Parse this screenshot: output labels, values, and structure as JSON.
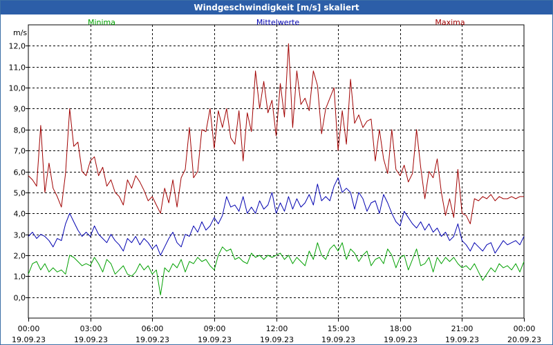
{
  "window": {
    "title": "Windgeschwindigkeit [m/s] skaliert"
  },
  "chart_data": {
    "type": "line",
    "title": "Windgeschwindigkeit [m/s] skaliert",
    "ylabel": "m/s",
    "xlabel": "",
    "ylim": [
      -1,
      13
    ],
    "yticks": [
      0,
      1,
      2,
      3,
      4,
      5,
      6,
      7,
      8,
      9,
      10,
      11,
      12
    ],
    "ytick_labels": [
      "0,0",
      "1,0",
      "2,0",
      "3,0",
      "4,0",
      "5,0",
      "6,0",
      "7,0",
      "8,0",
      "9,0",
      "10,0",
      "11,0",
      "12,0"
    ],
    "xlim": [
      0,
      24
    ],
    "xticks": [
      0,
      3,
      6,
      9,
      12,
      15,
      18,
      21,
      24
    ],
    "xtick_labels": [
      {
        "time": "00:00",
        "date": "19.09.23"
      },
      {
        "time": "03:00",
        "date": "19.09.23"
      },
      {
        "time": "06:00",
        "date": "19.09.23"
      },
      {
        "time": "09:00",
        "date": "19.09.23"
      },
      {
        "time": "12:00",
        "date": "19.09.23"
      },
      {
        "time": "15:00",
        "date": "19.09.23"
      },
      {
        "time": "18:00",
        "date": "19.09.23"
      },
      {
        "time": "21:00",
        "date": "19.09.23"
      },
      {
        "time": "00:00",
        "date": "20.09.23"
      }
    ],
    "grid": true,
    "legend_position": "top",
    "series": [
      {
        "name": "Minima",
        "color": "#00a000",
        "x": [
          0,
          0.2,
          0.4,
          0.6,
          0.8,
          1.0,
          1.2,
          1.4,
          1.6,
          1.8,
          2.0,
          2.2,
          2.4,
          2.6,
          2.8,
          3.0,
          3.2,
          3.4,
          3.6,
          3.8,
          4.0,
          4.2,
          4.4,
          4.6,
          4.8,
          5.0,
          5.2,
          5.4,
          5.6,
          5.8,
          6.0,
          6.2,
          6.4,
          6.6,
          6.8,
          7.0,
          7.2,
          7.4,
          7.6,
          7.8,
          8.0,
          8.2,
          8.4,
          8.6,
          8.8,
          9.0,
          9.2,
          9.4,
          9.6,
          9.8,
          10.0,
          10.2,
          10.4,
          10.6,
          10.8,
          11.0,
          11.2,
          11.4,
          11.6,
          11.8,
          12.0,
          12.2,
          12.4,
          12.6,
          12.8,
          13.0,
          13.2,
          13.4,
          13.6,
          13.8,
          14.0,
          14.2,
          14.4,
          14.6,
          14.8,
          15.0,
          15.2,
          15.4,
          15.6,
          15.8,
          16.0,
          16.2,
          16.4,
          16.6,
          16.8,
          17.0,
          17.2,
          17.4,
          17.6,
          17.8,
          18.0,
          18.2,
          18.4,
          18.6,
          18.8,
          19.0,
          19.2,
          19.4,
          19.6,
          19.8,
          20.0,
          20.2,
          20.4,
          20.6,
          20.8,
          21.0,
          21.2,
          21.4,
          21.6,
          21.8,
          22.0,
          22.2,
          22.4,
          22.6,
          22.8,
          23.0,
          23.2,
          23.4,
          23.6,
          23.8,
          24.0
        ],
        "values": [
          1.1,
          1.6,
          1.7,
          1.3,
          1.6,
          1.2,
          1.4,
          1.2,
          1.3,
          1.1,
          2.0,
          1.9,
          1.7,
          1.5,
          1.6,
          1.5,
          1.9,
          1.6,
          1.2,
          1.8,
          1.6,
          1.1,
          1.3,
          1.5,
          1.1,
          1.0,
          1.2,
          1.6,
          1.3,
          1.5,
          1.1,
          1.3,
          0.1,
          1.4,
          1.2,
          1.6,
          1.4,
          1.8,
          1.2,
          1.7,
          1.6,
          1.9,
          1.7,
          1.8,
          1.5,
          1.3,
          2.0,
          2.4,
          2.2,
          2.3,
          1.8,
          1.9,
          1.7,
          1.6,
          2.1,
          1.9,
          2.0,
          1.8,
          2.0,
          1.9,
          2.0,
          2.1,
          1.8,
          2.0,
          1.6,
          1.9,
          1.7,
          1.5,
          2.2,
          1.8,
          2.6,
          2.0,
          1.8,
          2.3,
          2.5,
          2.2,
          2.6,
          1.8,
          2.3,
          2.1,
          1.7,
          2.0,
          2.2,
          1.5,
          1.8,
          1.9,
          1.6,
          2.3,
          2.0,
          1.4,
          1.9,
          2.0,
          1.3,
          1.8,
          2.3,
          1.5,
          1.6,
          1.9,
          1.2,
          1.9,
          1.6,
          1.9,
          1.7,
          1.9,
          1.6,
          1.4,
          1.5,
          1.3,
          1.6,
          1.2,
          0.8,
          1.1,
          1.4,
          1.2,
          1.6,
          1.4,
          1.5,
          1.3,
          1.6,
          1.2,
          1.7
        ]
      },
      {
        "name": "Mittelwerte",
        "color": "#0000b0",
        "x": [
          0,
          0.2,
          0.4,
          0.6,
          0.8,
          1.0,
          1.2,
          1.4,
          1.6,
          1.8,
          2.0,
          2.2,
          2.4,
          2.6,
          2.8,
          3.0,
          3.2,
          3.4,
          3.6,
          3.8,
          4.0,
          4.2,
          4.4,
          4.6,
          4.8,
          5.0,
          5.2,
          5.4,
          5.6,
          5.8,
          6.0,
          6.2,
          6.4,
          6.6,
          6.8,
          7.0,
          7.2,
          7.4,
          7.6,
          7.8,
          8.0,
          8.2,
          8.4,
          8.6,
          8.8,
          9.0,
          9.2,
          9.4,
          9.6,
          9.8,
          10.0,
          10.2,
          10.4,
          10.6,
          10.8,
          11.0,
          11.2,
          11.4,
          11.6,
          11.8,
          12.0,
          12.2,
          12.4,
          12.6,
          12.8,
          13.0,
          13.2,
          13.4,
          13.6,
          13.8,
          14.0,
          14.2,
          14.4,
          14.6,
          14.8,
          15.0,
          15.2,
          15.4,
          15.6,
          15.8,
          16.0,
          16.2,
          16.4,
          16.6,
          16.8,
          17.0,
          17.2,
          17.4,
          17.6,
          17.8,
          18.0,
          18.2,
          18.4,
          18.6,
          18.8,
          19.0,
          19.2,
          19.4,
          19.6,
          19.8,
          20.0,
          20.2,
          20.4,
          20.6,
          20.8,
          21.0,
          21.2,
          21.4,
          21.6,
          21.8,
          22.0,
          22.2,
          22.4,
          22.6,
          22.8,
          23.0,
          23.2,
          23.4,
          23.6,
          23.8,
          24.0
        ],
        "values": [
          2.9,
          3.1,
          2.8,
          3.0,
          2.9,
          2.7,
          2.4,
          2.8,
          2.7,
          3.5,
          4.0,
          3.6,
          3.2,
          2.9,
          3.1,
          2.9,
          3.4,
          3.0,
          2.8,
          2.6,
          3.0,
          2.7,
          2.5,
          2.2,
          2.8,
          2.6,
          2.9,
          2.5,
          2.8,
          2.6,
          2.3,
          2.5,
          2.0,
          2.4,
          2.8,
          3.1,
          2.6,
          2.4,
          3.0,
          2.9,
          3.4,
          3.1,
          3.6,
          3.2,
          3.4,
          3.8,
          3.5,
          3.9,
          4.8,
          4.3,
          4.4,
          4.1,
          4.8,
          4.0,
          4.3,
          4.0,
          4.6,
          4.2,
          4.4,
          5.0,
          4.0,
          4.5,
          4.1,
          4.8,
          4.2,
          4.7,
          4.3,
          4.5,
          4.9,
          4.4,
          5.4,
          4.6,
          4.8,
          4.6,
          5.3,
          5.7,
          5.0,
          5.2,
          5.0,
          4.2,
          5.0,
          4.7,
          4.1,
          4.5,
          4.6,
          4.0,
          4.9,
          4.5,
          4.0,
          3.6,
          3.4,
          4.1,
          3.8,
          3.5,
          3.3,
          3.6,
          3.2,
          3.5,
          3.1,
          3.3,
          2.9,
          3.1,
          2.7,
          2.9,
          3.5,
          2.7,
          2.5,
          2.2,
          2.6,
          2.4,
          2.2,
          2.5,
          2.6,
          2.1,
          2.4,
          2.7,
          2.5,
          2.6,
          2.7,
          2.5,
          2.9
        ]
      },
      {
        "name": "Maxima",
        "color": "#a00000",
        "x": [
          0,
          0.2,
          0.4,
          0.6,
          0.8,
          1.0,
          1.2,
          1.4,
          1.6,
          1.8,
          2.0,
          2.2,
          2.4,
          2.6,
          2.8,
          3.0,
          3.2,
          3.4,
          3.6,
          3.8,
          4.0,
          4.2,
          4.4,
          4.6,
          4.8,
          5.0,
          5.2,
          5.4,
          5.6,
          5.8,
          6.0,
          6.2,
          6.4,
          6.6,
          6.8,
          7.0,
          7.2,
          7.4,
          7.6,
          7.8,
          8.0,
          8.2,
          8.4,
          8.6,
          8.8,
          9.0,
          9.2,
          9.4,
          9.6,
          9.8,
          10.0,
          10.2,
          10.4,
          10.6,
          10.8,
          11.0,
          11.2,
          11.4,
          11.6,
          11.8,
          12.0,
          12.2,
          12.4,
          12.6,
          12.8,
          13.0,
          13.2,
          13.4,
          13.6,
          13.8,
          14.0,
          14.2,
          14.4,
          14.6,
          14.8,
          15.0,
          15.2,
          15.4,
          15.6,
          15.8,
          16.0,
          16.2,
          16.4,
          16.6,
          16.8,
          17.0,
          17.2,
          17.4,
          17.6,
          17.8,
          18.0,
          18.2,
          18.4,
          18.6,
          18.8,
          19.0,
          19.2,
          19.4,
          19.6,
          19.8,
          20.0,
          20.2,
          20.4,
          20.6,
          20.8,
          21.0,
          21.2,
          21.4,
          21.6,
          21.8,
          22.0,
          22.2,
          22.4,
          22.6,
          22.8,
          23.0,
          23.2,
          23.4,
          23.6,
          23.8,
          24.0
        ],
        "values": [
          5.8,
          5.6,
          5.3,
          8.2,
          5.0,
          6.4,
          5.2,
          4.8,
          4.3,
          5.9,
          9.0,
          7.2,
          7.4,
          6.0,
          5.8,
          6.5,
          6.7,
          5.8,
          6.2,
          5.3,
          5.6,
          5.0,
          4.8,
          4.4,
          5.6,
          5.2,
          5.8,
          5.5,
          5.1,
          4.6,
          4.8,
          4.4,
          4.0,
          5.2,
          4.5,
          5.6,
          4.3,
          5.7,
          6.1,
          8.1,
          5.7,
          6.0,
          8.0,
          7.9,
          9.0,
          7.1,
          8.9,
          8.1,
          9.0,
          7.6,
          7.3,
          8.9,
          6.5,
          8.8,
          7.9,
          10.8,
          9.0,
          10.3,
          8.8,
          9.4,
          7.7,
          10.2,
          8.6,
          12.1,
          8.1,
          10.8,
          9.2,
          9.5,
          8.9,
          10.8,
          10.1,
          7.8,
          9.0,
          9.5,
          10.0,
          7.0,
          8.9,
          7.3,
          10.4,
          8.3,
          8.7,
          8.1,
          8.4,
          8.5,
          6.5,
          8.0,
          6.6,
          5.9,
          8.0,
          6.1,
          5.8,
          6.3,
          5.5,
          5.9,
          8.0,
          6.2,
          4.7,
          6.0,
          5.7,
          6.6,
          5.0,
          3.9,
          4.7,
          3.8,
          6.1,
          4.0,
          3.9,
          3.5,
          4.7,
          4.6,
          4.8,
          4.7,
          4.9,
          4.6,
          4.8,
          4.7,
          4.7,
          4.8,
          4.7,
          4.8,
          4.8
        ]
      }
    ]
  }
}
